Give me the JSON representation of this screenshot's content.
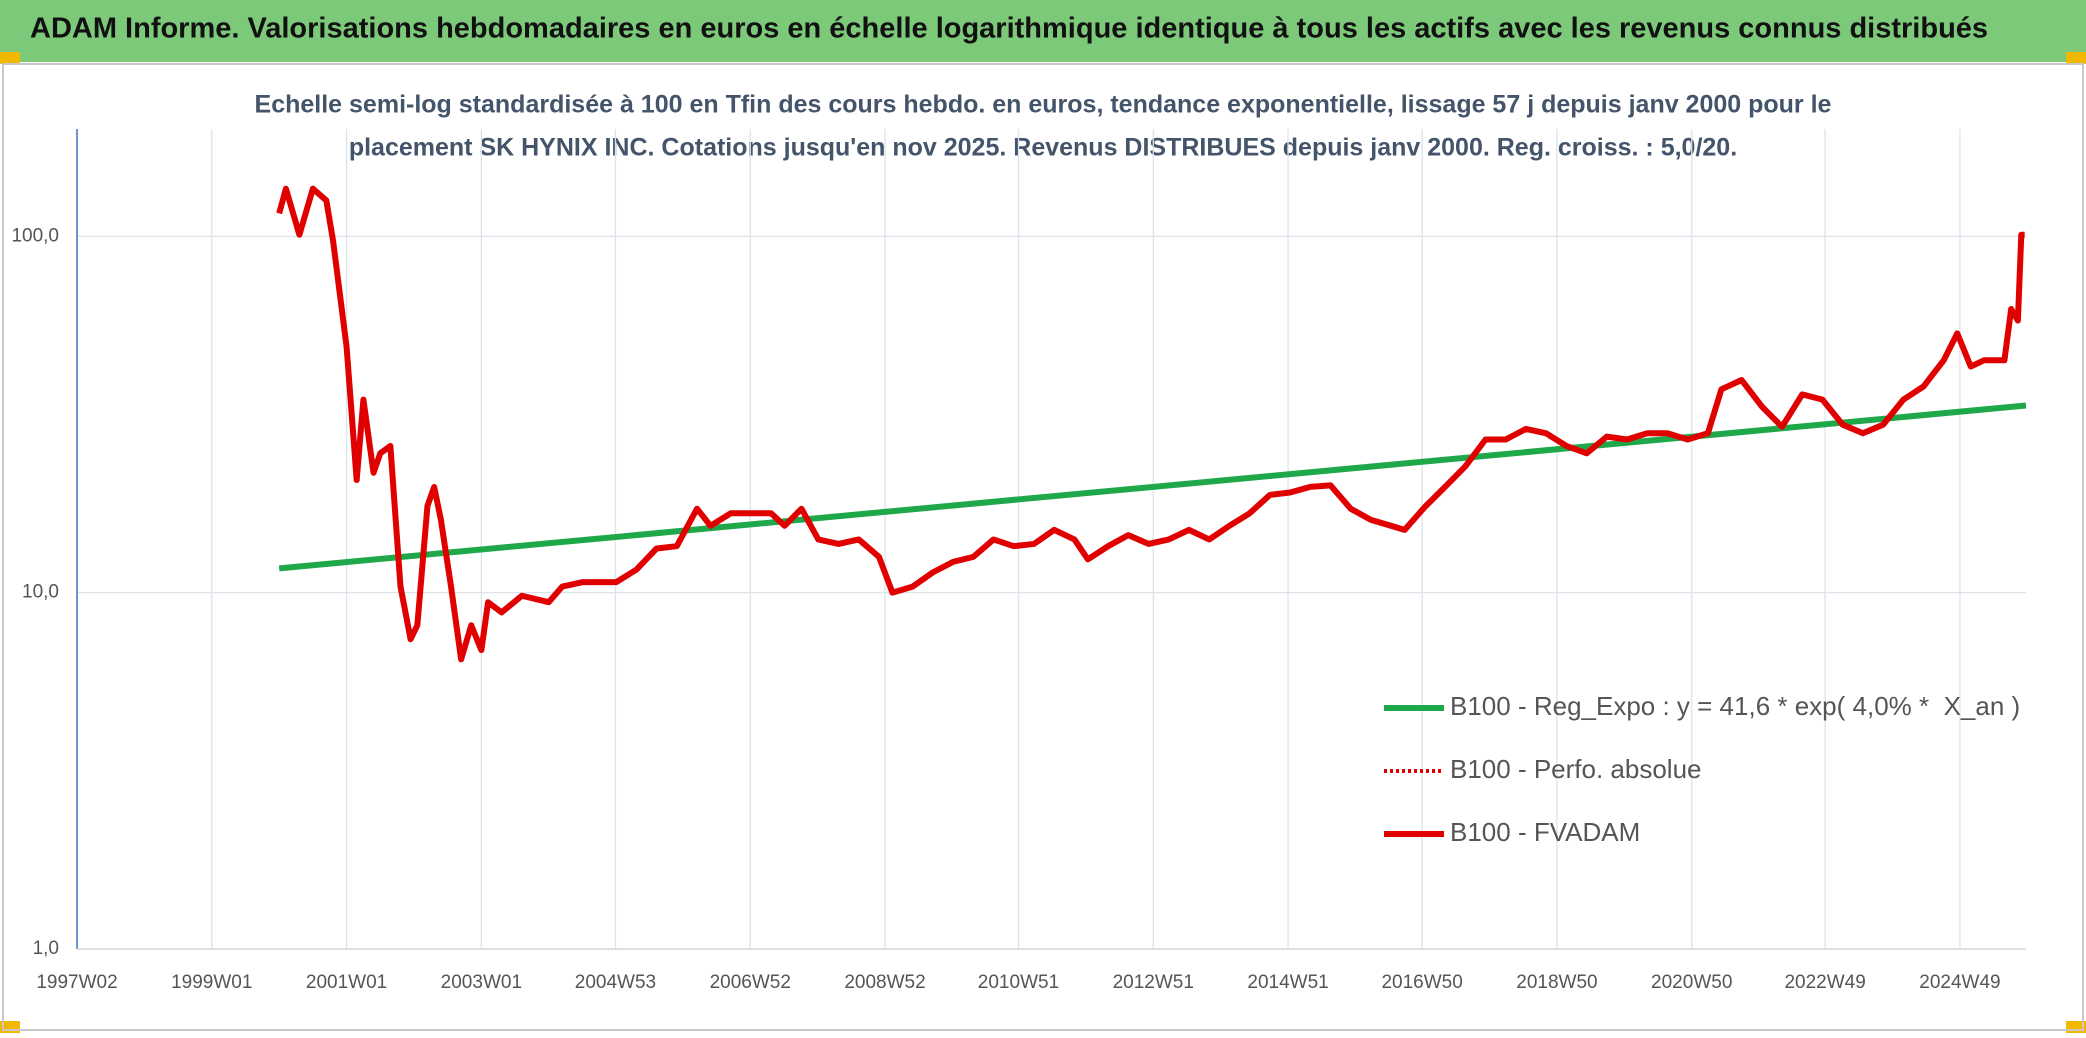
{
  "chart_data": {
    "type": "line",
    "header": "ADAM Informe. Valorisations hebdomadaires en euros en échelle logarithmique identique à tous les actifs avec les revenus connus distribués",
    "subtitle": [
      "Echelle semi-log standardisée à 100 en Tfin des cours hebdo. en euros, tendance exponentielle, lissage 57 j depuis janv 2000 pour le",
      "placement SK HYNIX INC. Cotations jusqu'en nov 2025. Revenus DISTRIBUES depuis janv 2000. Reg. croiss. : 5,0/20."
    ],
    "log_scale": true,
    "grid": true,
    "legend": "lower right",
    "xlim": [
      1997.0,
      2025.92
    ],
    "xticks": [
      {
        "value": 1997.0,
        "label": "1997W02"
      },
      {
        "value": 1999.0,
        "label": "1999W01"
      },
      {
        "value": 2001.0,
        "label": "2001W01"
      },
      {
        "value": 2003.0,
        "label": "2003W01"
      },
      {
        "value": 2004.99,
        "label": "2004W53"
      },
      {
        "value": 2006.99,
        "label": "2006W52"
      },
      {
        "value": 2008.99,
        "label": "2008W52"
      },
      {
        "value": 2010.97,
        "label": "2010W51"
      },
      {
        "value": 2012.97,
        "label": "2012W51"
      },
      {
        "value": 2014.97,
        "label": "2014W51"
      },
      {
        "value": 2016.96,
        "label": "2016W50"
      },
      {
        "value": 2018.96,
        "label": "2018W50"
      },
      {
        "value": 2020.96,
        "label": "2020W50"
      },
      {
        "value": 2022.94,
        "label": "2022W49"
      },
      {
        "value": 2024.94,
        "label": "2024W49"
      }
    ],
    "ylim": [
      1,
      200
    ],
    "yticks": [
      {
        "value": 1,
        "label": "1,0"
      },
      {
        "value": 10,
        "label": "10,0"
      },
      {
        "value": 100,
        "label": "100,0"
      }
    ],
    "series": [
      {
        "name": "B100 - Reg_Expo : y = 41,6 * exp( 4,0% *  X_an )",
        "color": "#1fa84a",
        "style": "solid",
        "x": [
          2000.0,
          2025.92
        ],
        "values": [
          11.7,
          33.5
        ]
      },
      {
        "name": "B100 - Perfo. absolue",
        "color": "#e00000",
        "style": "dotted",
        "x": [
          2000.0,
          2000.1,
          2000.3,
          2000.5,
          2000.7,
          2000.8,
          2001.0,
          2001.15,
          2001.25,
          2001.4,
          2001.5,
          2001.65,
          2001.8,
          2001.95,
          2002.05,
          2002.2,
          2002.3,
          2002.4,
          2002.55,
          2002.7,
          2002.85,
          2003.0,
          2003.1,
          2003.3,
          2003.6,
          2004.0,
          2004.2,
          2004.5,
          2005.0,
          2005.3,
          2005.6,
          2005.9,
          2006.2,
          2006.4,
          2006.7,
          2007.0,
          2007.3,
          2007.5,
          2007.75,
          2008.0,
          2008.3,
          2008.6,
          2008.9,
          2009.1,
          2009.4,
          2009.7,
          2010.0,
          2010.3,
          2010.6,
          2010.9,
          2011.2,
          2011.5,
          2011.8,
          2012.0,
          2012.3,
          2012.6,
          2012.9,
          2013.2,
          2013.5,
          2013.8,
          2014.1,
          2014.4,
          2014.7,
          2015.0,
          2015.3,
          2015.6,
          2015.9,
          2016.2,
          2016.5,
          2016.7,
          2017.0,
          2017.3,
          2017.6,
          2017.9,
          2018.2,
          2018.5,
          2018.8,
          2019.1,
          2019.4,
          2019.7,
          2020.0,
          2020.3,
          2020.6,
          2020.9,
          2021.2,
          2021.4,
          2021.7,
          2022.0,
          2022.3,
          2022.6,
          2022.9,
          2023.2,
          2023.5,
          2023.8,
          2024.1,
          2024.4,
          2024.7,
          2024.9,
          2025.1,
          2025.3,
          2025.6,
          2025.7,
          2025.8,
          2025.85,
          2025.9
        ],
        "values": [
          116,
          136,
          101,
          136,
          126,
          97,
          49,
          20.7,
          34.8,
          21.7,
          24.6,
          25.8,
          10.4,
          7.4,
          8.1,
          17.5,
          19.8,
          16,
          10.4,
          6.5,
          8.1,
          6.9,
          9.4,
          8.8,
          9.8,
          9.4,
          10.4,
          10.7,
          10.7,
          11.6,
          13.3,
          13.5,
          17.2,
          15.4,
          16.7,
          16.7,
          16.7,
          15.4,
          17.2,
          14.1,
          13.7,
          14.1,
          12.6,
          10,
          10.4,
          11.4,
          12.2,
          12.6,
          14.1,
          13.5,
          13.7,
          15,
          14.1,
          12.4,
          13.5,
          14.5,
          13.7,
          14.1,
          15,
          14.1,
          15.4,
          16.7,
          18.8,
          19.1,
          19.8,
          20,
          17.2,
          16,
          15.4,
          15,
          17.4,
          19.8,
          22.6,
          26.9,
          26.9,
          28.8,
          28,
          25.8,
          24.6,
          27.4,
          26.9,
          28,
          28,
          26.9,
          28,
          37.2,
          39.5,
          33.3,
          29.2,
          36,
          34.8,
          29.6,
          28,
          29.6,
          34.8,
          37.9,
          44.9,
          53.4,
          43.1,
          44.9,
          44.9,
          62.5,
          58,
          101,
          101
        ]
      },
      {
        "name": "B100 - FVADAM",
        "color": "#e00000",
        "style": "solid",
        "x": [
          2000.0,
          2000.1,
          2000.3,
          2000.5,
          2000.7,
          2000.8,
          2001.0,
          2001.15,
          2001.25,
          2001.4,
          2001.5,
          2001.65,
          2001.8,
          2001.95,
          2002.05,
          2002.2,
          2002.3,
          2002.4,
          2002.55,
          2002.7,
          2002.85,
          2003.0,
          2003.1,
          2003.3,
          2003.6,
          2004.0,
          2004.2,
          2004.5,
          2005.0,
          2005.3,
          2005.6,
          2005.9,
          2006.2,
          2006.4,
          2006.7,
          2007.0,
          2007.3,
          2007.5,
          2007.75,
          2008.0,
          2008.3,
          2008.6,
          2008.9,
          2009.1,
          2009.4,
          2009.7,
          2010.0,
          2010.3,
          2010.6,
          2010.9,
          2011.2,
          2011.5,
          2011.8,
          2012.0,
          2012.3,
          2012.6,
          2012.9,
          2013.2,
          2013.5,
          2013.8,
          2014.1,
          2014.4,
          2014.7,
          2015.0,
          2015.3,
          2015.6,
          2015.9,
          2016.2,
          2016.5,
          2016.7,
          2017.0,
          2017.3,
          2017.6,
          2017.9,
          2018.2,
          2018.5,
          2018.8,
          2019.1,
          2019.4,
          2019.7,
          2020.0,
          2020.3,
          2020.6,
          2020.9,
          2021.2,
          2021.4,
          2021.7,
          2022.0,
          2022.3,
          2022.6,
          2022.9,
          2023.2,
          2023.5,
          2023.8,
          2024.1,
          2024.4,
          2024.7,
          2024.9,
          2025.1,
          2025.3,
          2025.6,
          2025.7,
          2025.8,
          2025.85,
          2025.9
        ],
        "values": [
          116,
          136,
          101,
          136,
          126,
          97,
          49,
          20.7,
          34.8,
          21.7,
          24.6,
          25.8,
          10.4,
          7.4,
          8.1,
          17.5,
          19.8,
          16,
          10.4,
          6.5,
          8.1,
          6.9,
          9.4,
          8.8,
          9.8,
          9.4,
          10.4,
          10.7,
          10.7,
          11.6,
          13.3,
          13.5,
          17.2,
          15.4,
          16.7,
          16.7,
          16.7,
          15.4,
          17.2,
          14.1,
          13.7,
          14.1,
          12.6,
          10,
          10.4,
          11.4,
          12.2,
          12.6,
          14.1,
          13.5,
          13.7,
          15,
          14.1,
          12.4,
          13.5,
          14.5,
          13.7,
          14.1,
          15,
          14.1,
          15.4,
          16.7,
          18.8,
          19.1,
          19.8,
          20,
          17.2,
          16,
          15.4,
          15,
          17.4,
          19.8,
          22.6,
          26.9,
          26.9,
          28.8,
          28,
          25.8,
          24.6,
          27.4,
          26.9,
          28,
          28,
          26.9,
          28,
          37.2,
          39.5,
          33.3,
          29.2,
          36,
          34.8,
          29.6,
          28,
          29.6,
          34.8,
          37.9,
          44.9,
          53.4,
          43.1,
          44.9,
          44.9,
          62.5,
          58,
          101,
          101
        ]
      }
    ]
  }
}
